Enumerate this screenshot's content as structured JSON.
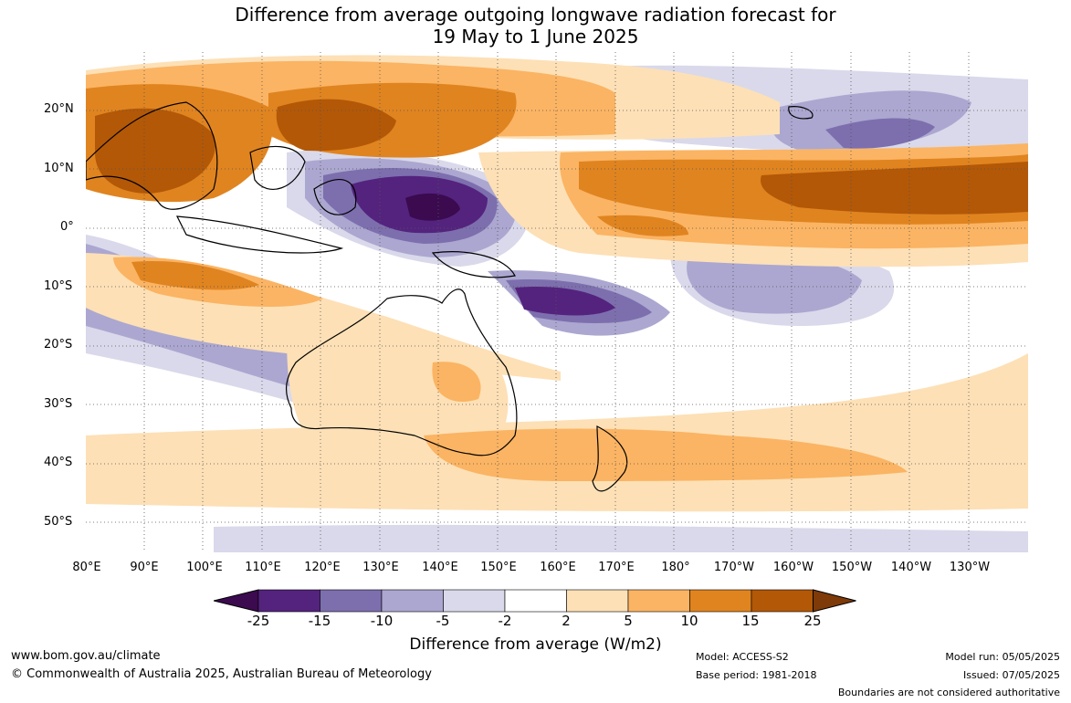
{
  "title": {
    "line1": "Difference from average outgoing longwave radiation forecast for",
    "line2": "19 May to 1 June 2025"
  },
  "lat_labels": [
    "20°N",
    "10°N",
    "0°",
    "10°S",
    "20°S",
    "30°S",
    "40°S",
    "50°S"
  ],
  "lon_labels": [
    "80°E",
    "90°E",
    "100°E",
    "110°E",
    "120°E",
    "130°E",
    "140°E",
    "150°E",
    "160°E",
    "170°E",
    "180°",
    "170°W",
    "160°W",
    "150°W",
    "140°W",
    "130°W"
  ],
  "colorbar": {
    "ticks": [
      "-25",
      "-15",
      "-10",
      "-5",
      "-2",
      "2",
      "5",
      "10",
      "15",
      "25"
    ],
    "colors": [
      "#3b0a4f",
      "#54237e",
      "#7d6fae",
      "#aba7d0",
      "#d9d9eb",
      "#ffffff",
      "#fde0b6",
      "#fbb463",
      "#e08420",
      "#b35807",
      "#7e3a08"
    ],
    "label": "Difference from average (W/m2)"
  },
  "footer": {
    "url": "www.bom.gov.au/climate",
    "copyright": "© Commonwealth of Australia 2025, Australian Bureau of Meteorology",
    "model": "Model: ACCESS-S2",
    "base_period": "Base period: 1981-2018",
    "model_run": "Model run: 05/05/2025",
    "issued": "Issued: 07/05/2025",
    "disclaimer": "Boundaries are not considered authoritative"
  }
}
